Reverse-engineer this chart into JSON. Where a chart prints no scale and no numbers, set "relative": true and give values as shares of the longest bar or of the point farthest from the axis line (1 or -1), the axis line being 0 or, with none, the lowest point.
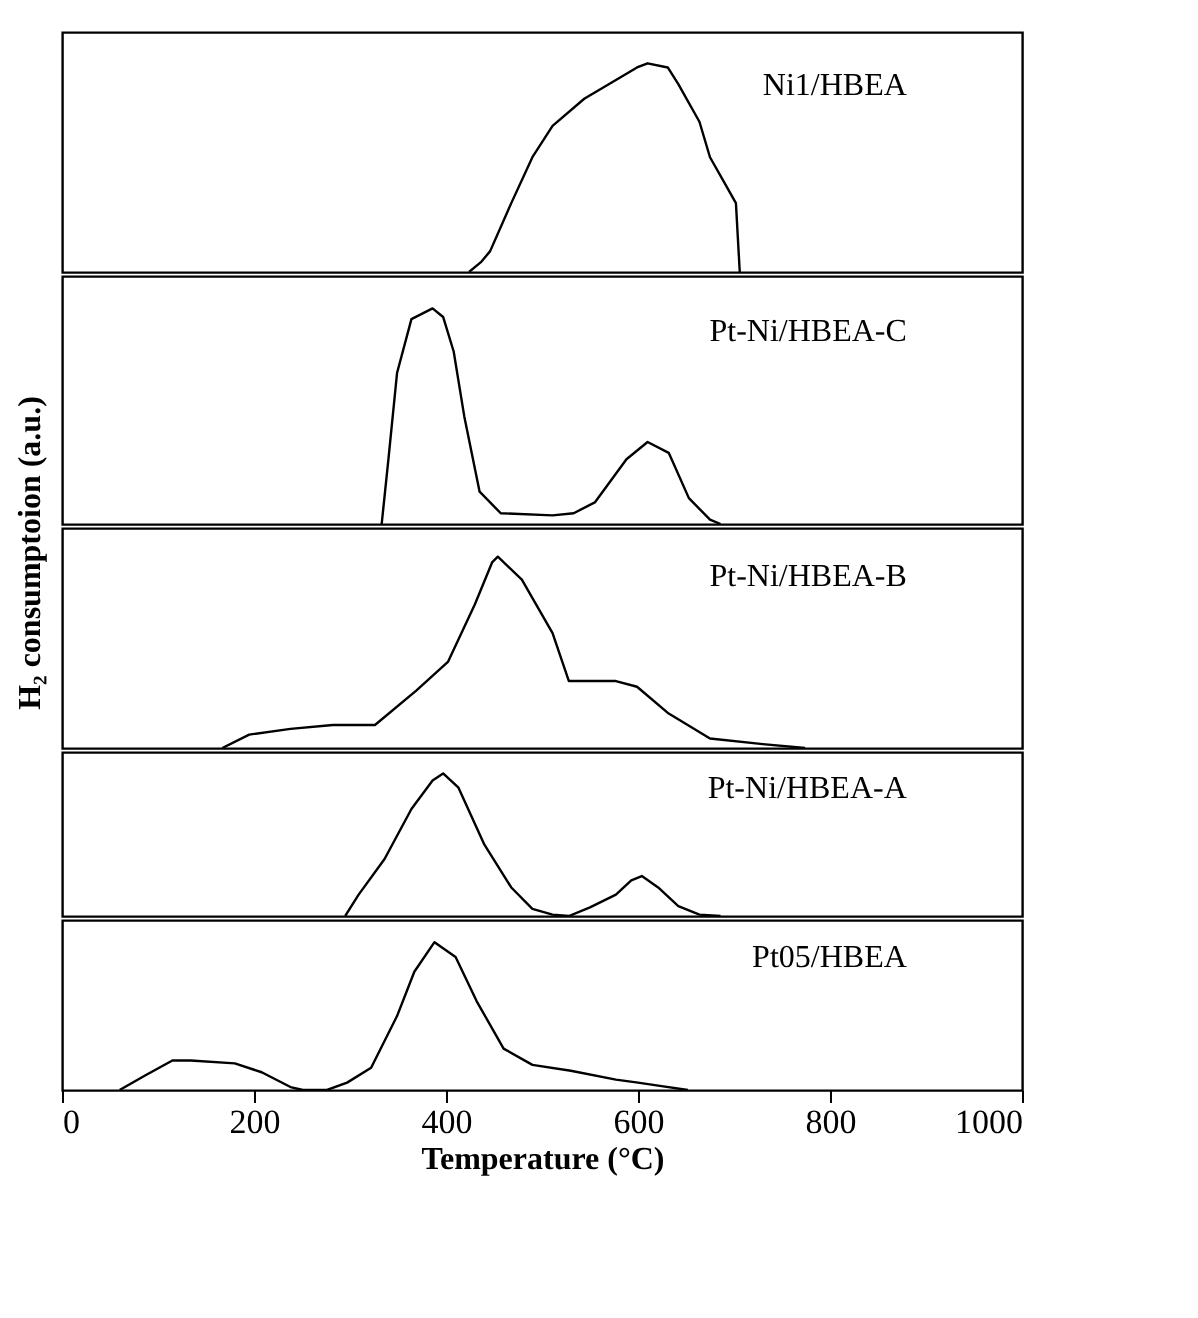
{
  "chart_data": [
    {
      "type": "line",
      "relative": true,
      "xlim": [
        0,
        1000
      ],
      "xticks": [
        0,
        200,
        400,
        600,
        800,
        1000
      ],
      "tick_labels": false,
      "grid": false,
      "x": [
        424,
        437,
        446,
        468,
        490,
        511,
        544,
        577,
        599,
        610,
        631,
        642,
        664,
        675,
        691,
        702,
        706
      ],
      "series": [
        {
          "name": "Ni1/HBEA",
          "color": "#000000",
          "values": [
            0,
            0.05,
            0.1,
            0.33,
            0.55,
            0.7,
            0.83,
            0.92,
            0.98,
            1,
            0.98,
            0.9,
            0.72,
            0.55,
            0.42,
            0.33,
            0
          ]
        }
      ]
    },
    {
      "type": "line",
      "relative": true,
      "xlim": [
        0,
        1000
      ],
      "xticks": [
        0,
        200,
        400,
        600,
        800,
        1000
      ],
      "tick_labels": false,
      "grid": false,
      "x": [
        333,
        340,
        349,
        364,
        386,
        397,
        408,
        419,
        435,
        457,
        511,
        533,
        555,
        588,
        610,
        632,
        653,
        675,
        686
      ],
      "series": [
        {
          "name": "Pt-Ni/HBEA-C",
          "color": "#000000",
          "values": [
            0,
            0.3,
            0.7,
            0.95,
            1,
            0.96,
            0.8,
            0.5,
            0.15,
            0.05,
            0.04,
            0.05,
            0.1,
            0.3,
            0.38,
            0.33,
            0.12,
            0.02,
            0
          ]
        }
      ]
    },
    {
      "type": "line",
      "relative": true,
      "xlim": [
        0,
        1000
      ],
      "xticks": [
        0,
        200,
        400,
        600,
        800,
        1000
      ],
      "tick_labels": false,
      "grid": false,
      "ylabel": "H₂ consumptoion (a.u.)",
      "x": [
        167,
        195,
        238,
        282,
        326,
        369,
        402,
        430,
        448,
        454,
        479,
        511,
        528,
        577,
        599,
        632,
        675,
        730,
        774
      ],
      "series": [
        {
          "name": "Pt-Ni/HBEA-B",
          "color": "#000000",
          "values": [
            0,
            0.07,
            0.1,
            0.12,
            0.12,
            0.3,
            0.45,
            0.75,
            0.97,
            1,
            0.88,
            0.6,
            0.35,
            0.35,
            0.32,
            0.18,
            0.05,
            0.02,
            0
          ]
        }
      ]
    },
    {
      "type": "line",
      "relative": true,
      "xlim": [
        0,
        1000
      ],
      "xticks": [
        0,
        200,
        400,
        600,
        800,
        1000
      ],
      "tick_labels": false,
      "grid": false,
      "x": [
        295,
        309,
        336,
        364,
        386,
        397,
        413,
        440,
        468,
        490,
        511,
        528,
        550,
        577,
        593,
        604,
        621,
        642,
        664,
        686
      ],
      "series": [
        {
          "name": "Pt-Ni/HBEA-A",
          "color": "#000000",
          "values": [
            0,
            0.15,
            0.4,
            0.75,
            0.95,
            1,
            0.9,
            0.5,
            0.2,
            0.05,
            0.01,
            0,
            0.06,
            0.15,
            0.25,
            0.28,
            0.2,
            0.07,
            0.01,
            0
          ]
        }
      ]
    },
    {
      "type": "line",
      "relative": true,
      "xlim": [
        0,
        1000
      ],
      "xticks": [
        0,
        200,
        400,
        600,
        800,
        1000
      ],
      "tick_labels": "x",
      "grid": false,
      "xlabel": "Temperature (°C)",
      "x": [
        60,
        87,
        115,
        134,
        180,
        208,
        238,
        251,
        276,
        297,
        322,
        349,
        367,
        388,
        410,
        432,
        460,
        490,
        530,
        577,
        600,
        621,
        652
      ],
      "series": [
        {
          "name": "Pt05/HBEA",
          "color": "#000000",
          "values": [
            0,
            0.1,
            0.2,
            0.2,
            0.18,
            0.12,
            0.02,
            0,
            0,
            0.05,
            0.15,
            0.5,
            0.8,
            1,
            0.9,
            0.6,
            0.28,
            0.17,
            0.13,
            0.07,
            0.05,
            0.03,
            0
          ]
        }
      ]
    }
  ]
}
